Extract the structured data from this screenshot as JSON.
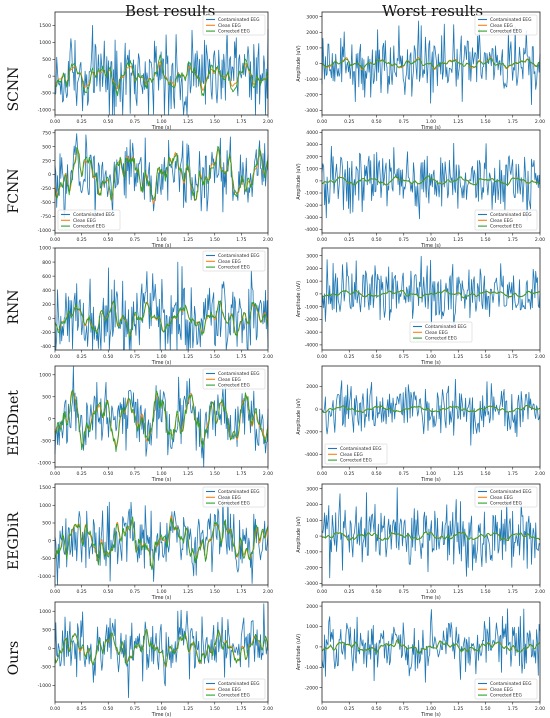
{
  "column_titles": {
    "left": "Best results",
    "right": "Worst results"
  },
  "row_labels": [
    "SCNN",
    "FCNN",
    "RNN",
    "EEGDnet",
    "EEGDiR",
    "Ours"
  ],
  "colors": {
    "contaminated": "#1f77b4",
    "clean": "#ff7f0e",
    "corrected": "#2ca02c"
  },
  "chart_data": [
    {
      "type": "line",
      "row": "SCNN",
      "column": "Best results",
      "xlabel": "Time (s)",
      "ylabel": "",
      "xlim": [
        0,
        2
      ],
      "ylim": [
        -1150,
        1900
      ],
      "xticks": [
        "0.00",
        "0.25",
        "0.50",
        "0.75",
        "1.00",
        "1.25",
        "1.50",
        "1.75",
        "2.00"
      ],
      "yticks": [
        "-1000",
        "-500",
        "0",
        "500",
        "1000",
        "1500"
      ],
      "ytick_values": [
        -1000,
        -500,
        0,
        500,
        1000,
        1500
      ],
      "legend_position": "top-right",
      "grid": false,
      "series": [
        {
          "name": "Contaminated EEG",
          "approx_peak_amplitude": 1700
        },
        {
          "name": "Clean EEG",
          "approx_peak_amplitude": 500
        },
        {
          "name": "Corrected EEG",
          "approx_peak_amplitude": 700
        }
      ]
    },
    {
      "type": "line",
      "row": "SCNN",
      "column": "Worst results",
      "xlabel": "Time (s)",
      "ylabel": "Amplitude (uV)",
      "xlim": [
        0,
        2
      ],
      "ylim": [
        -3300,
        3300
      ],
      "xticks": [
        "0.00",
        "0.25",
        "0.50",
        "0.75",
        "1.00",
        "1.25",
        "1.50",
        "1.75",
        "2.00"
      ],
      "yticks": [
        "-3000",
        "-2000",
        "-1000",
        "0",
        "1000",
        "2000",
        "3000"
      ],
      "ytick_values": [
        -3000,
        -2000,
        -1000,
        0,
        1000,
        2000,
        3000
      ],
      "legend_position": "top-right",
      "grid": false,
      "series": [
        {
          "name": "Contaminated EEG",
          "approx_peak_amplitude": 3100
        },
        {
          "name": "Clean EEG",
          "approx_peak_amplitude": 500
        },
        {
          "name": "Corrected EEG",
          "approx_peak_amplitude": 400
        }
      ]
    },
    {
      "type": "line",
      "row": "FCNN",
      "column": "Best results",
      "xlabel": "Time (s)",
      "ylabel": "",
      "xlim": [
        0,
        2
      ],
      "ylim": [
        -1050,
        800
      ],
      "xticks": [
        "0.00",
        "0.25",
        "0.50",
        "0.75",
        "1.00",
        "1.25",
        "1.50",
        "1.75",
        "2.00"
      ],
      "yticks": [
        "-1000",
        "-750",
        "-500",
        "-250",
        "0",
        "250",
        "500",
        "750"
      ],
      "ytick_values": [
        -1000,
        -750,
        -500,
        -250,
        0,
        250,
        500,
        750
      ],
      "legend_position": "bottom-left",
      "grid": false,
      "series": [
        {
          "name": "Contaminated EEG",
          "approx_peak_amplitude": 900
        },
        {
          "name": "Clean EEG",
          "approx_peak_amplitude": 650
        },
        {
          "name": "Corrected EEG",
          "approx_peak_amplitude": 650
        }
      ]
    },
    {
      "type": "line",
      "row": "FCNN",
      "column": "Worst results",
      "xlabel": "Time (s)",
      "ylabel": "Amplitude (uV)",
      "xlim": [
        0,
        2
      ],
      "ylim": [
        -4300,
        4200
      ],
      "xticks": [
        "0.00",
        "0.25",
        "0.50",
        "0.75",
        "1.00",
        "1.25",
        "1.50",
        "1.75",
        "2.00"
      ],
      "yticks": [
        "-4000",
        "-3000",
        "-2000",
        "-1000",
        "0",
        "1000",
        "2000",
        "3000",
        "4000"
      ],
      "ytick_values": [
        -4000,
        -3000,
        -2000,
        -1000,
        0,
        1000,
        2000,
        3000,
        4000
      ],
      "legend_position": "bottom-right",
      "grid": false,
      "series": [
        {
          "name": "Contaminated EEG",
          "approx_peak_amplitude": 3900
        },
        {
          "name": "Clean EEG",
          "approx_peak_amplitude": 500
        },
        {
          "name": "Corrected EEG",
          "approx_peak_amplitude": 500
        }
      ]
    },
    {
      "type": "line",
      "row": "RNN",
      "column": "Best results",
      "xlabel": "Time (s)",
      "ylabel": "",
      "xlim": [
        0,
        2
      ],
      "ylim": [
        -450,
        1000
      ],
      "xticks": [
        "0.00",
        "0.25",
        "0.50",
        "0.75",
        "1.00",
        "1.25",
        "1.50",
        "1.75",
        "2.00"
      ],
      "yticks": [
        "-400",
        "-200",
        "0",
        "200",
        "400",
        "600",
        "800",
        "1000"
      ],
      "ytick_values": [
        -400,
        -200,
        0,
        200,
        400,
        600,
        800,
        1000
      ],
      "legend_position": "top-right",
      "grid": false,
      "series": [
        {
          "name": "Contaminated EEG",
          "approx_peak_amplitude": 950
        },
        {
          "name": "Clean EEG",
          "approx_peak_amplitude": 300
        },
        {
          "name": "Corrected EEG",
          "approx_peak_amplitude": 320
        }
      ]
    },
    {
      "type": "line",
      "row": "RNN",
      "column": "Worst results",
      "xlabel": "Time (s)",
      "ylabel": "Amplitude (uV)",
      "xlim": [
        0,
        2
      ],
      "ylim": [
        -4400,
        3600
      ],
      "xticks": [
        "0.00",
        "0.25",
        "0.50",
        "0.75",
        "1.00",
        "1.25",
        "1.50",
        "1.75",
        "2.00"
      ],
      "yticks": [
        "-4000",
        "-3000",
        "-2000",
        "-1000",
        "0",
        "1000",
        "2000",
        "3000"
      ],
      "ytick_values": [
        -4000,
        -3000,
        -2000,
        -1000,
        0,
        1000,
        2000,
        3000
      ],
      "legend_position": "center",
      "grid": false,
      "series": [
        {
          "name": "Contaminated EEG",
          "approx_peak_amplitude": 3300
        },
        {
          "name": "Clean EEG",
          "approx_peak_amplitude": 400
        },
        {
          "name": "Corrected EEG",
          "approx_peak_amplitude": 400
        }
      ]
    },
    {
      "type": "line",
      "row": "EEGDnet",
      "column": "Best results",
      "xlabel": "Time (s)",
      "ylabel": "",
      "xlim": [
        0,
        2
      ],
      "ylim": [
        -1100,
        1200
      ],
      "xticks": [
        "0.00",
        "0.25",
        "0.50",
        "0.75",
        "1.00",
        "1.25",
        "1.50",
        "1.75",
        "2.00"
      ],
      "yticks": [
        "-1000",
        "-500",
        "0",
        "500",
        "1000"
      ],
      "ytick_values": [
        -1000,
        -500,
        0,
        500,
        1000
      ],
      "legend_position": "top-right",
      "grid": false,
      "series": [
        {
          "name": "Contaminated EEG",
          "approx_peak_amplitude": 1100
        },
        {
          "name": "Clean EEG",
          "approx_peak_amplitude": 900
        },
        {
          "name": "Corrected EEG",
          "approx_peak_amplitude": 900
        }
      ]
    },
    {
      "type": "line",
      "row": "EEGDnet",
      "column": "Worst results",
      "xlabel": "Time (s)",
      "ylabel": "Amplitude (uV)",
      "xlim": [
        0,
        2
      ],
      "ylim": [
        -5100,
        3800
      ],
      "xticks": [
        "0.00",
        "0.25",
        "0.50",
        "0.75",
        "1.00",
        "1.25",
        "1.50",
        "1.75",
        "2.00"
      ],
      "yticks": [
        "-4000",
        "-2000",
        "0",
        "2000"
      ],
      "ytick_values": [
        -4000,
        -2000,
        0,
        2000
      ],
      "legend_position": "bottom-left",
      "grid": false,
      "series": [
        {
          "name": "Contaminated EEG",
          "approx_peak_amplitude": 3500
        },
        {
          "name": "Clean EEG",
          "approx_peak_amplitude": 500
        },
        {
          "name": "Corrected EEG",
          "approx_peak_amplitude": 500
        }
      ]
    },
    {
      "type": "line",
      "row": "EEGDiR",
      "column": "Best results",
      "xlabel": "Time (s)",
      "ylabel": "",
      "xlim": [
        0,
        2
      ],
      "ylim": [
        -1250,
        1600
      ],
      "xticks": [
        "0.00",
        "0.25",
        "0.50",
        "0.75",
        "1.00",
        "1.25",
        "1.50",
        "1.75",
        "2.00"
      ],
      "yticks": [
        "-1000",
        "-500",
        "0",
        "500",
        "1000",
        "1500"
      ],
      "ytick_values": [
        -1000,
        -500,
        0,
        500,
        1000,
        1500
      ],
      "legend_position": "top-right",
      "grid": false,
      "series": [
        {
          "name": "Contaminated EEG",
          "approx_peak_amplitude": 1450
        },
        {
          "name": "Clean EEG",
          "approx_peak_amplitude": 900
        },
        {
          "name": "Corrected EEG",
          "approx_peak_amplitude": 900
        }
      ]
    },
    {
      "type": "line",
      "row": "EEGDiR",
      "column": "Worst results",
      "xlabel": "Time (s)",
      "ylabel": "Amplitude (uV)",
      "xlim": [
        0,
        2
      ],
      "ylim": [
        -3100,
        3300
      ],
      "xticks": [
        "0.00",
        "0.25",
        "0.50",
        "0.75",
        "1.00",
        "1.25",
        "1.50",
        "1.75",
        "2.00"
      ],
      "yticks": [
        "-3000",
        "-2000",
        "-1000",
        "0",
        "1000",
        "2000",
        "3000"
      ],
      "ytick_values": [
        -3000,
        -2000,
        -1000,
        0,
        1000,
        2000,
        3000
      ],
      "legend_position": "top-right",
      "grid": false,
      "series": [
        {
          "name": "Contaminated EEG",
          "approx_peak_amplitude": 3100
        },
        {
          "name": "Clean EEG",
          "approx_peak_amplitude": 400
        },
        {
          "name": "Corrected EEG",
          "approx_peak_amplitude": 400
        }
      ]
    },
    {
      "type": "line",
      "row": "Ours",
      "column": "Best results",
      "xlabel": "Time (s)",
      "ylabel": "",
      "xlim": [
        0,
        2
      ],
      "ylim": [
        -1450,
        1250
      ],
      "xticks": [
        "0.00",
        "0.25",
        "0.50",
        "0.75",
        "1.00",
        "1.25",
        "1.50",
        "1.75",
        "2.00"
      ],
      "yticks": [
        "-1000",
        "-500",
        "0",
        "500",
        "1000"
      ],
      "ytick_values": [
        -1000,
        -500,
        0,
        500,
        1000
      ],
      "legend_position": "bottom-right",
      "grid": false,
      "series": [
        {
          "name": "Contaminated EEG",
          "approx_peak_amplitude": 1200
        },
        {
          "name": "Clean EEG",
          "approx_peak_amplitude": 600
        },
        {
          "name": "Corrected EEG",
          "approx_peak_amplitude": 600
        }
      ]
    },
    {
      "type": "line",
      "row": "Ours",
      "column": "Worst results",
      "xlabel": "Time (s)",
      "ylabel": "Amplitude (uV)",
      "xlim": [
        0,
        2
      ],
      "ylim": [
        -2700,
        2200
      ],
      "xticks": [
        "0.00",
        "0.25",
        "0.50",
        "0.75",
        "1.00",
        "1.25",
        "1.50",
        "1.75",
        "2.00"
      ],
      "yticks": [
        "-2000",
        "-1000",
        "0",
        "1000",
        "2000"
      ],
      "ytick_values": [
        -2000,
        -1000,
        0,
        1000,
        2000
      ],
      "legend_position": "bottom-right",
      "grid": false,
      "series": [
        {
          "name": "Contaminated EEG",
          "approx_peak_amplitude": 2100
        },
        {
          "name": "Clean EEG",
          "approx_peak_amplitude": 400
        },
        {
          "name": "Corrected EEG",
          "approx_peak_amplitude": 400
        }
      ]
    }
  ]
}
